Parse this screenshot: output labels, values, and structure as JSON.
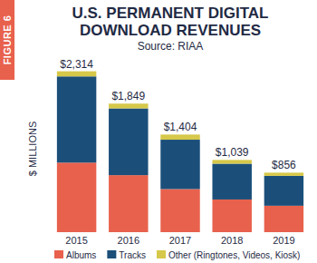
{
  "chart_data": {
    "type": "bar",
    "figure_label": "FIGURE 6",
    "title": "U.S. PERMANENT DIGITAL DOWNLOAD REVENUES",
    "subtitle": "Source: RIAA",
    "y_label": "$ MILLIONS",
    "categories": [
      "2015",
      "2016",
      "2017",
      "2018",
      "2019"
    ],
    "series": [
      {
        "name": "Albums",
        "color": "#e8614d",
        "values": [
          1000,
          820,
          620,
          470,
          380
        ]
      },
      {
        "name": "Tracks",
        "color": "#1b4f7a",
        "values": [
          1240,
          960,
          710,
          515,
          430
        ]
      },
      {
        "name": "Other (Ringtones, Videos, Kiosk)",
        "color": "#d6c84a",
        "values": [
          74,
          69,
          74,
          54,
          46
        ]
      }
    ],
    "totals": [
      2314,
      1849,
      1404,
      1039,
      856
    ],
    "total_labels": [
      "$2,314",
      "$1,849",
      "$1,404",
      "$1,039",
      "$856"
    ],
    "stacked": true,
    "ylim": [
      0,
      2400
    ],
    "tick_labels": "x",
    "grid": false,
    "legend": "bottom"
  }
}
